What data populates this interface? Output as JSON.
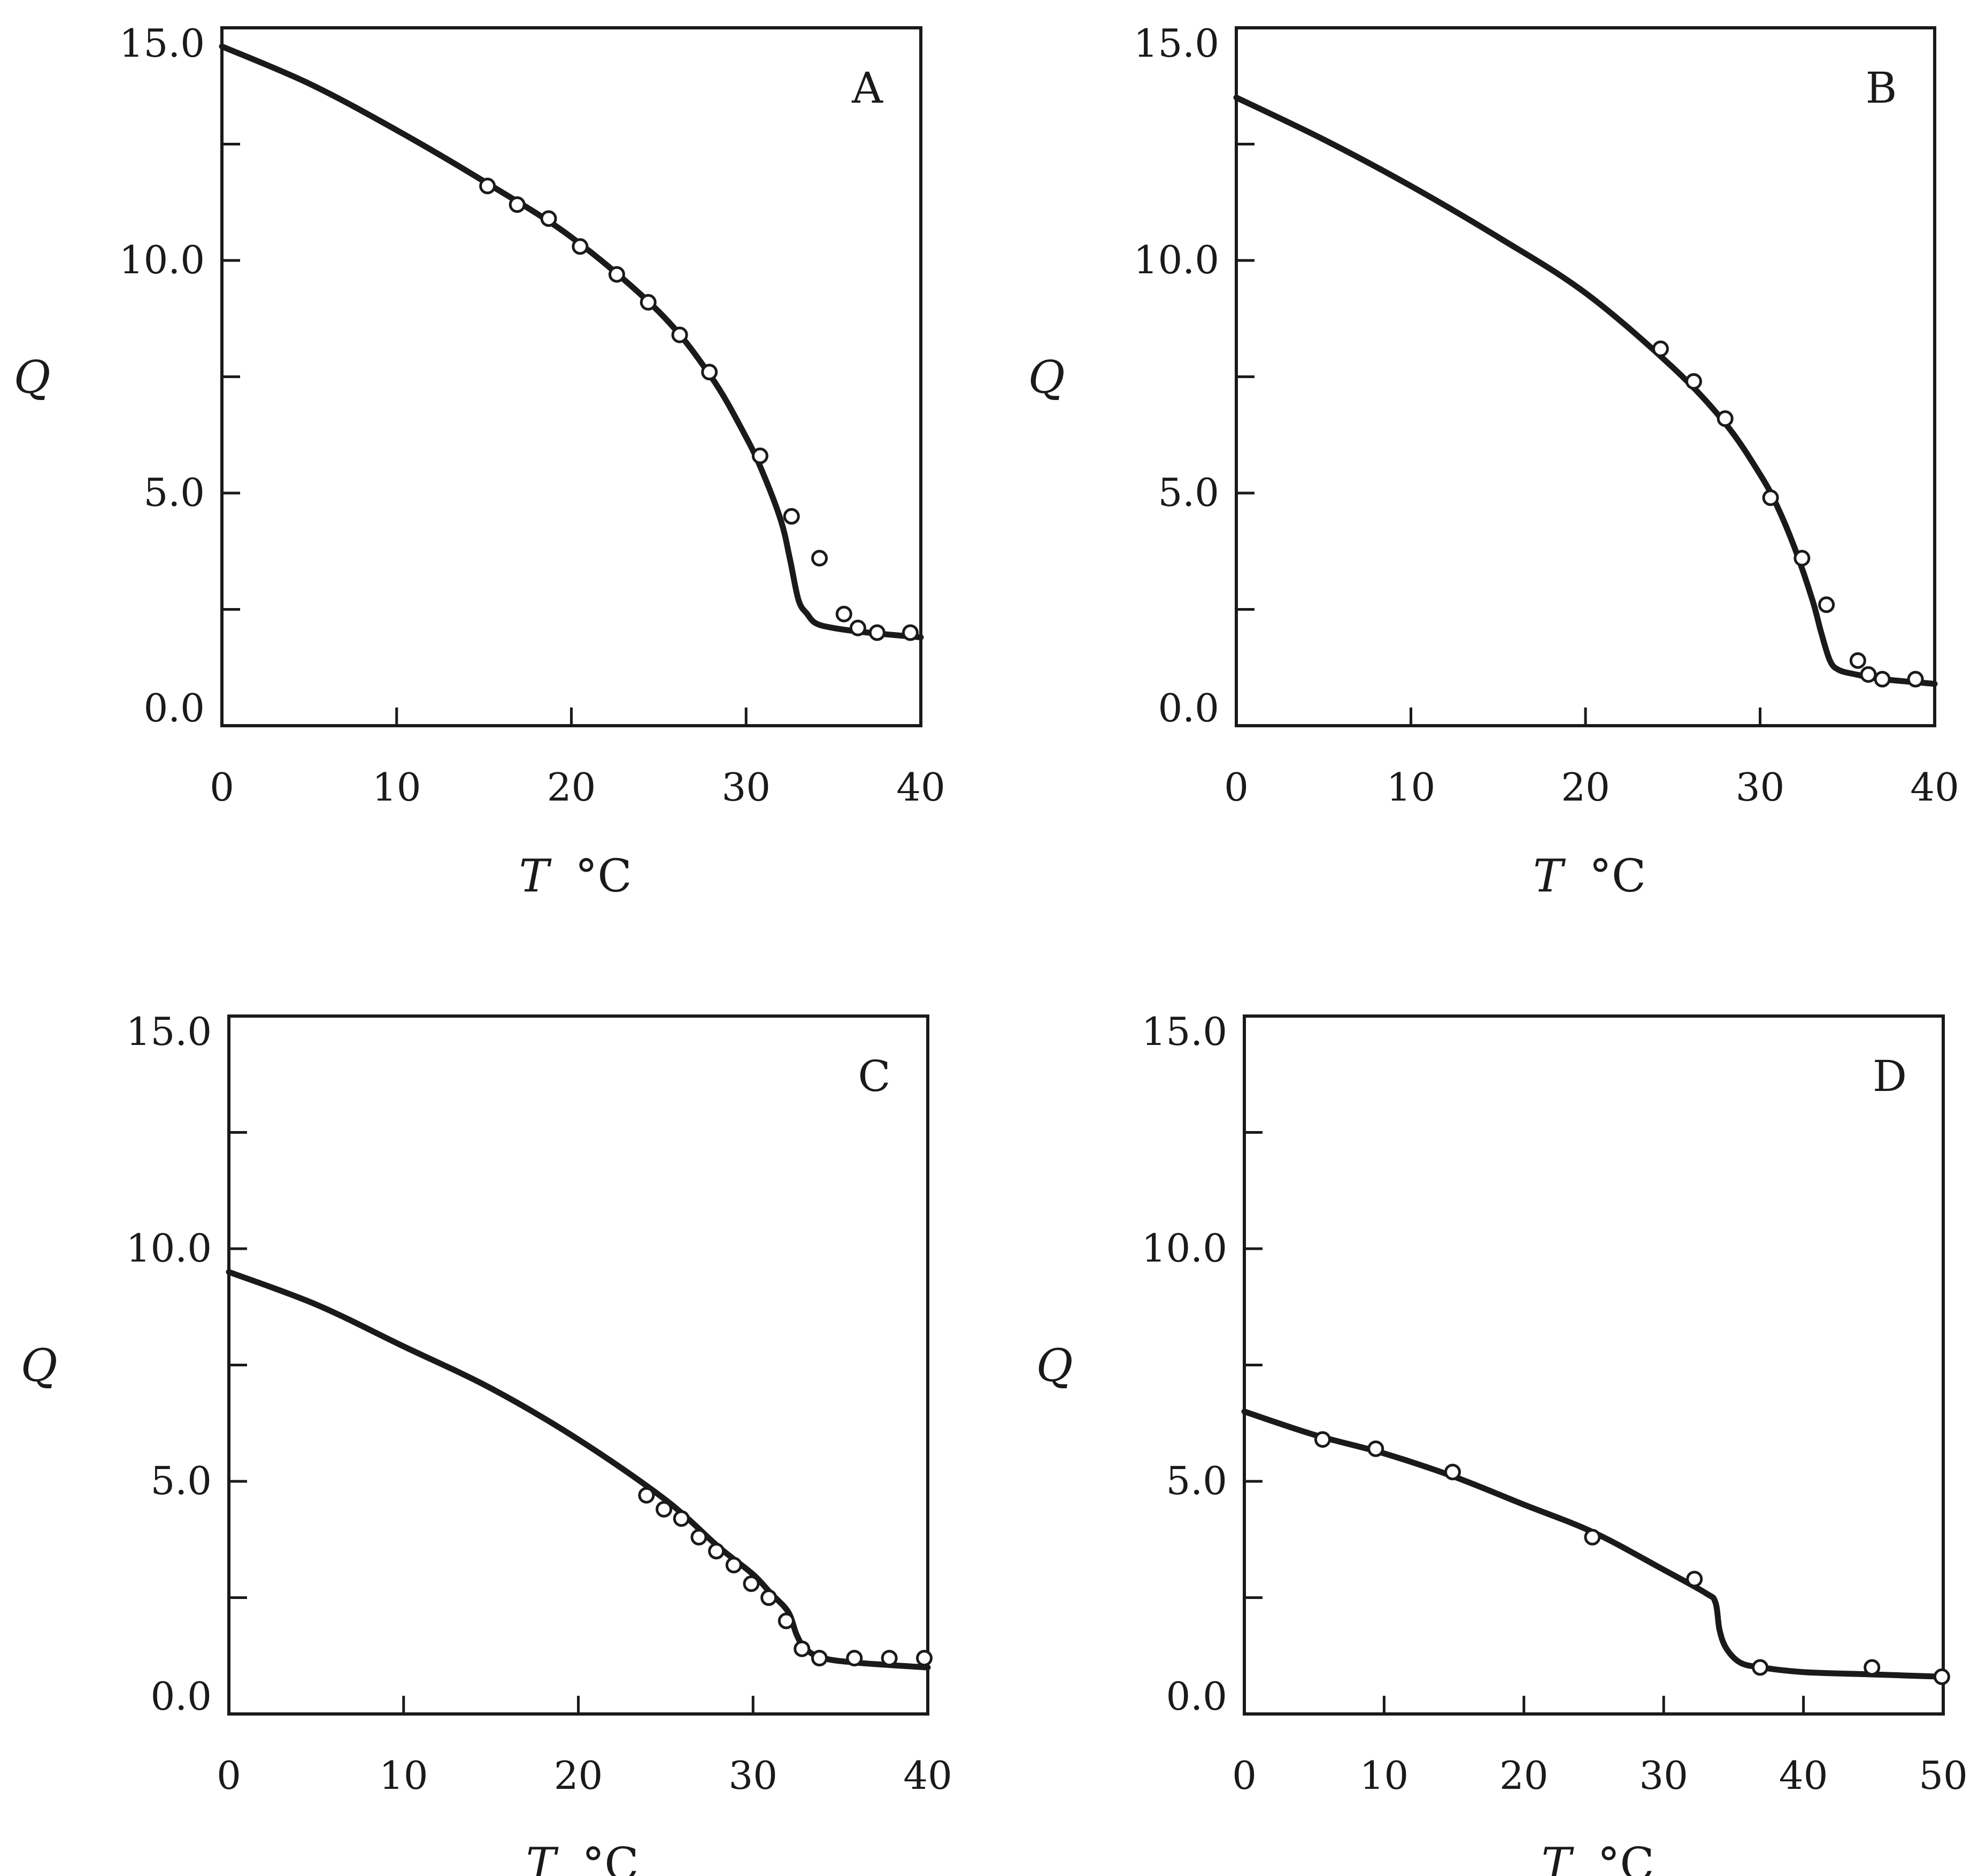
{
  "chart_data": [
    {
      "type": "line",
      "panel": "A",
      "xlabel": "T",
      "xunit": "°C",
      "ylabel": "Q",
      "xlim": [
        0,
        40
      ],
      "ylim": [
        0,
        15
      ],
      "xticks": [
        0,
        10,
        20,
        30,
        40
      ],
      "xtick_labels": [
        "0",
        "10",
        "20",
        "30",
        "40"
      ],
      "yticks": [
        0,
        2.5,
        5,
        7.5,
        10,
        12.5,
        15
      ],
      "ytick_labels": [
        "0.0",
        "",
        "5.0",
        "",
        "10.0",
        "",
        "15.0"
      ],
      "curve": {
        "x": [
          0,
          5,
          10,
          15,
          20,
          25,
          28,
          30,
          31,
          32,
          32.5,
          33,
          33.5,
          34,
          35,
          37,
          40
        ],
        "y": [
          14.6,
          13.8,
          12.8,
          11.7,
          10.5,
          8.9,
          7.5,
          6.2,
          5.4,
          4.4,
          3.6,
          2.7,
          2.4,
          2.2,
          2.1,
          2.0,
          1.9
        ]
      },
      "points": {
        "x": [
          15.2,
          16.9,
          18.7,
          20.5,
          22.6,
          24.4,
          26.2,
          27.9,
          30.8,
          32.6,
          34.2,
          35.6,
          36.4,
          37.5,
          39.4
        ],
        "y": [
          11.6,
          11.2,
          10.9,
          10.3,
          9.7,
          9.1,
          8.4,
          7.6,
          5.8,
          4.5,
          3.6,
          2.4,
          2.1,
          2.0,
          2.0
        ]
      }
    },
    {
      "type": "line",
      "panel": "B",
      "xlabel": "T",
      "xunit": "°C",
      "ylabel": "Q",
      "xlim": [
        0,
        40
      ],
      "ylim": [
        0,
        15
      ],
      "xticks": [
        0,
        10,
        20,
        30,
        40
      ],
      "xtick_labels": [
        "0",
        "10",
        "20",
        "30",
        "40"
      ],
      "yticks": [
        0,
        2.5,
        5,
        7.5,
        10,
        12.5,
        15
      ],
      "ytick_labels": [
        "0.0",
        "",
        "5.0",
        "",
        "10.0",
        "",
        "15.0"
      ],
      "curve": {
        "x": [
          0,
          5,
          10,
          15,
          20,
          25,
          28,
          30,
          31,
          32,
          33,
          33.5,
          34,
          34.5,
          35.5,
          37,
          40
        ],
        "y": [
          13.5,
          12.6,
          11.6,
          10.5,
          9.3,
          7.7,
          6.5,
          5.4,
          4.7,
          3.8,
          2.7,
          2.0,
          1.4,
          1.2,
          1.1,
          1.0,
          0.9
        ]
      },
      "points": {
        "x": [
          24.3,
          26.2,
          28.0,
          30.6,
          32.4,
          33.8,
          35.6,
          36.2,
          37.0,
          38.9
        ],
        "y": [
          8.1,
          7.4,
          6.6,
          4.9,
          3.6,
          2.6,
          1.4,
          1.1,
          1.0,
          1.0
        ]
      }
    },
    {
      "type": "line",
      "panel": "C",
      "xlabel": "T",
      "xunit": "°C",
      "ylabel": "Q",
      "xlim": [
        0,
        40
      ],
      "ylim": [
        0,
        15
      ],
      "xticks": [
        0,
        10,
        20,
        30,
        40
      ],
      "xtick_labels": [
        "0",
        "10",
        "20",
        "30",
        "40"
      ],
      "yticks": [
        0,
        2.5,
        5,
        7.5,
        10,
        12.5,
        15
      ],
      "ytick_labels": [
        "0.0",
        "",
        "5.0",
        "",
        "10.0",
        "",
        "15.0"
      ],
      "curve": {
        "x": [
          0,
          5,
          10,
          15,
          20,
          25,
          28,
          30,
          31,
          32,
          32.5,
          33,
          34,
          36,
          40
        ],
        "y": [
          9.5,
          8.8,
          7.9,
          7.0,
          5.9,
          4.6,
          3.6,
          3.0,
          2.6,
          2.2,
          1.7,
          1.4,
          1.2,
          1.1,
          1.0
        ]
      },
      "points": {
        "x": [
          23.9,
          24.9,
          25.9,
          26.9,
          27.9,
          28.9,
          29.9,
          30.9,
          31.9,
          32.8,
          33.8,
          35.8,
          37.8,
          39.8
        ],
        "y": [
          4.7,
          4.4,
          4.2,
          3.8,
          3.5,
          3.2,
          2.8,
          2.5,
          2.0,
          1.4,
          1.2,
          1.2,
          1.2,
          1.2
        ]
      }
    },
    {
      "type": "line",
      "panel": "D",
      "xlabel": "T",
      "xunit": "°C",
      "ylabel": "Q",
      "xlim": [
        0,
        50
      ],
      "ylim": [
        0,
        15
      ],
      "xticks": [
        0,
        10,
        20,
        30,
        40,
        50
      ],
      "xtick_labels": [
        "0",
        "10",
        "20",
        "30",
        "40",
        "50"
      ],
      "yticks": [
        0,
        2.5,
        5,
        7.5,
        10,
        12.5,
        15
      ],
      "ytick_labels": [
        "0.0",
        "",
        "5.0",
        "",
        "10.0",
        "",
        "15.0"
      ],
      "curve": {
        "x": [
          0,
          5,
          10,
          15,
          20,
          25,
          30,
          33,
          33.7,
          34,
          34.5,
          35.5,
          37,
          40,
          45,
          50
        ],
        "y": [
          6.5,
          6.0,
          5.6,
          5.1,
          4.5,
          3.9,
          3.1,
          2.6,
          2.4,
          1.8,
          1.4,
          1.1,
          1.0,
          0.9,
          0.85,
          0.8
        ]
      },
      "points": {
        "x": [
          5.6,
          9.4,
          14.9,
          24.9,
          32.2,
          36.9,
          44.9,
          49.9
        ],
        "y": [
          5.9,
          5.7,
          5.2,
          3.8,
          2.9,
          1.0,
          1.0,
          0.8
        ]
      }
    }
  ]
}
